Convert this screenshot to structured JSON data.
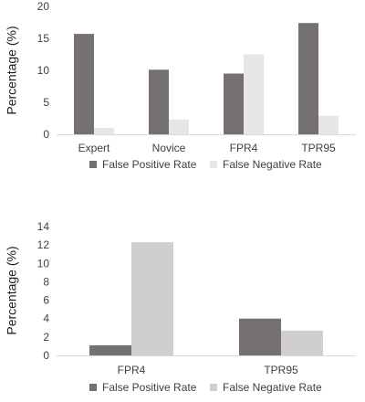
{
  "chart_data": [
    {
      "type": "bar",
      "categories": [
        "Expert",
        "Novice",
        "FPR4",
        "TPR95"
      ],
      "series": [
        {
          "name": "False Positive Rate",
          "values": [
            15.7,
            10.1,
            9.5,
            17.4
          ],
          "color": "#767171"
        },
        {
          "name": "False Negative Rate",
          "values": [
            1.0,
            2.3,
            12.5,
            2.9
          ],
          "color": "#e7e6e6"
        }
      ],
      "title": "",
      "xlabel": "",
      "ylabel": "Percentage (%)",
      "ylim": [
        0,
        20
      ],
      "yticks": [
        "0",
        "5",
        "10",
        "15",
        "20"
      ],
      "grid": false,
      "legend": "bottom"
    },
    {
      "type": "bar",
      "categories": [
        "FPR4",
        "TPR95"
      ],
      "series": [
        {
          "name": "False Positive Rate",
          "values": [
            1.1,
            4.0
          ],
          "color": "#767171"
        },
        {
          "name": "False Negative Rate",
          "values": [
            12.3,
            2.7
          ],
          "color": "#d0cece"
        }
      ],
      "title": "",
      "xlabel": "",
      "ylabel": "Percentage (%)",
      "ylim": [
        0,
        14
      ],
      "yticks": [
        "0",
        "2",
        "4",
        "6",
        "8",
        "10",
        "12",
        "14"
      ],
      "grid": false,
      "legend": "bottom"
    }
  ]
}
